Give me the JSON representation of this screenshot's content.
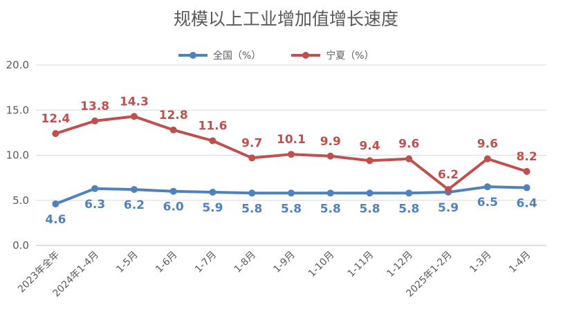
{
  "title": "规模以上工业增加值增长速度",
  "colors": {
    "blue": "#4F81BD",
    "red": "#C0504D",
    "grid": "#D9D9D9",
    "text": "#595959"
  },
  "chart_data": {
    "type": "line",
    "title": "规模以上工业增加值增长速度",
    "xlabel": "",
    "ylabel": "",
    "ylim": [
      0,
      20
    ],
    "yticks": [
      "0.0",
      "5.0",
      "10.0",
      "15.0",
      "20.0"
    ],
    "grid": true,
    "legend_position": "top",
    "categories": [
      "2023年全年",
      "2024年1-4月",
      "1-5月",
      "1-6月",
      "1-7月",
      "1-8月",
      "1-9月",
      "1-10月",
      "1-11月",
      "1-12月",
      "2025年1-2月",
      "1-3月",
      "1-4月"
    ],
    "series": [
      {
        "name": "全国（%）",
        "color": "#4F81BD",
        "values": [
          4.6,
          6.3,
          6.2,
          6.0,
          5.9,
          5.8,
          5.8,
          5.8,
          5.8,
          5.8,
          5.9,
          6.5,
          6.4
        ],
        "labels": [
          "4.6",
          "6.3",
          "6.2",
          "6.0",
          "5.9",
          "5.8",
          "5.8",
          "5.8",
          "5.8",
          "5.8",
          "5.9",
          "6.5",
          "6.4"
        ]
      },
      {
        "name": "宁夏（%）",
        "color": "#C0504D",
        "values": [
          12.4,
          13.8,
          14.3,
          12.8,
          11.6,
          9.7,
          10.1,
          9.9,
          9.4,
          9.6,
          6.2,
          9.6,
          8.2
        ],
        "labels": [
          "12.4",
          "13.8",
          "14.3",
          "12.8",
          "11.6",
          "9.7",
          "10.1",
          "9.9",
          "9.4",
          "9.6",
          "6.2",
          "9.6",
          "8.2"
        ]
      }
    ]
  }
}
